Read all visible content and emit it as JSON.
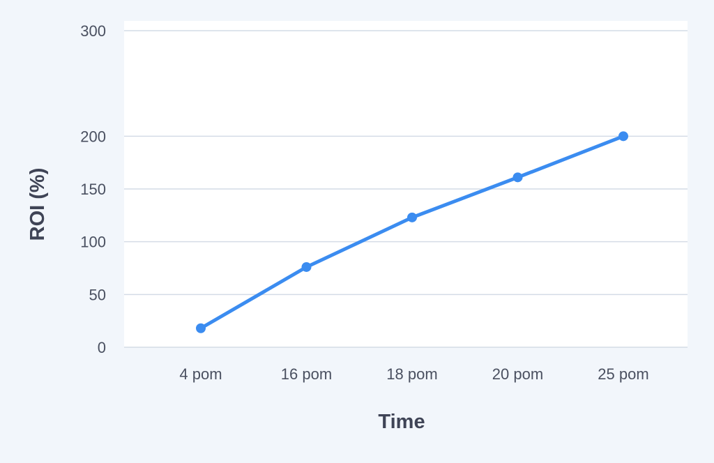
{
  "chart_data": {
    "type": "line",
    "title": "",
    "xlabel": "Time",
    "ylabel": "ROI (%)",
    "categories": [
      "4 pom",
      "16 pom",
      "18 pom",
      "20 pom",
      "25 pom"
    ],
    "series": [
      {
        "values": [
          18,
          76,
          123,
          161,
          200
        ]
      }
    ],
    "ylim": [
      0,
      300
    ],
    "yticks": [
      0,
      50,
      100,
      150,
      200,
      300
    ],
    "grid": true,
    "legend": "none",
    "line_color": "#3b8cf0",
    "background_color": "#f2f6fb"
  }
}
